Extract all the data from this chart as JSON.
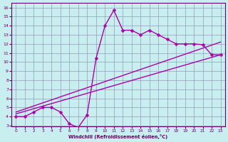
{
  "xlabel": "Windchill (Refroidissement éolien,°C)",
  "ylabel": "",
  "xlim": [
    -0.5,
    23.5
  ],
  "ylim": [
    3,
    16.5
  ],
  "xticks": [
    0,
    1,
    2,
    3,
    4,
    5,
    6,
    7,
    8,
    9,
    10,
    11,
    12,
    13,
    14,
    15,
    16,
    17,
    18,
    19,
    20,
    21,
    22,
    23
  ],
  "yticks": [
    3,
    4,
    5,
    6,
    7,
    8,
    9,
    10,
    11,
    12,
    13,
    14,
    15,
    16
  ],
  "bg_color": "#c8eef0",
  "grid_color": "#9999bb",
  "line_color": "#aa00aa",
  "wavy_x": [
    0,
    1,
    2,
    3,
    4,
    5,
    6,
    7,
    8,
    9,
    10,
    11,
    12,
    13,
    14,
    15,
    16,
    17,
    18,
    19,
    20,
    21,
    22,
    23
  ],
  "wavy_y": [
    4.0,
    4.0,
    4.5,
    5.0,
    5.0,
    4.5,
    3.2,
    2.8,
    4.2,
    10.4,
    14.0,
    15.7,
    13.5,
    13.5,
    13.0,
    13.5,
    13.0,
    12.5,
    12.0,
    12.0,
    12.0,
    11.9,
    10.8,
    10.8
  ],
  "trend1_x": [
    0,
    23
  ],
  "trend1_y": [
    4.3,
    10.8
  ],
  "trend2_x": [
    0,
    23
  ],
  "trend2_y": [
    4.5,
    12.2
  ],
  "marker": "D",
  "marker_size": 2.5,
  "line_width": 1.0
}
